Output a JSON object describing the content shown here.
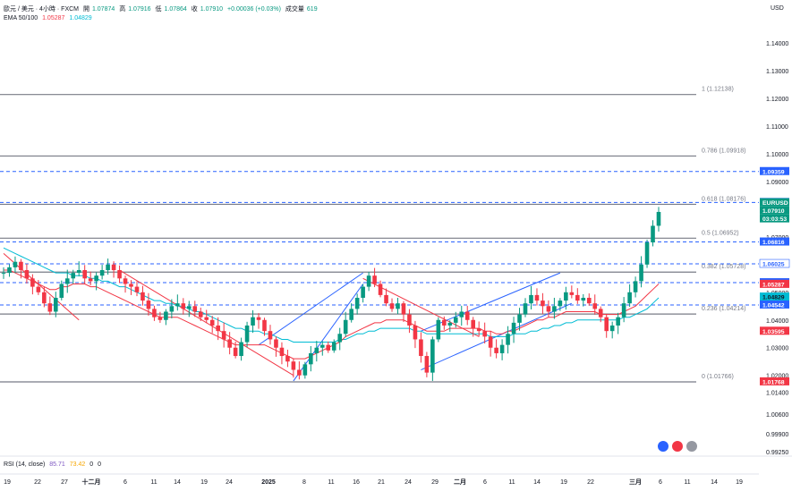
{
  "header": {
    "symbol": "歐元 / 美元 · 4小時 · FXCM",
    "open_label": "開",
    "open": "1.07874",
    "high_label": "高",
    "high": "1.07916",
    "low_label": "低",
    "low": "1.07864",
    "close_label": "收",
    "close": "1.07910",
    "change": "+0.00036 (+0.03%)",
    "volume_label": "成交量",
    "volume": "619"
  },
  "ema_legend": {
    "label": "EMA 50/100",
    "ema50": "1.05287",
    "ema100": "1.04829",
    "ema50_color": "#f23645",
    "ema100_color": "#00bcd4"
  },
  "rsi_legend": {
    "label": "RSI (14, close)",
    "v1": "85.71",
    "v2": "73.42",
    "v3": "0",
    "v4": "0",
    "v1_color": "#7e57c2",
    "v2_color": "#f7a600"
  },
  "currency": "USD",
  "chart_data": {
    "type": "candlestick",
    "y_axis": {
      "min": 0.9915,
      "max": 1.1555,
      "ticks": [
        "1.14000",
        "1.13000",
        "1.12000",
        "1.11000",
        "1.10000",
        "1.09000",
        "1.08000",
        "1.07000",
        "1.06000",
        "1.05000",
        "1.04000",
        "1.03000",
        "1.02000",
        "1.01400",
        "1.00600",
        "0.99900",
        "0.99250"
      ]
    },
    "x_ticks": [
      "19",
      "22",
      "27",
      "十二月",
      "6",
      "11",
      "14",
      "19",
      "24",
      "2025",
      "8",
      "11",
      "16",
      "21",
      "24",
      "29",
      "二月",
      "6",
      "11",
      "14",
      "19",
      "22",
      "三月",
      "6",
      "11",
      "14",
      "19"
    ],
    "fib_levels": [
      {
        "label": "1 (1.12138)",
        "price": 1.12138
      },
      {
        "label": "0.786 (1.09918)",
        "price": 1.09918
      },
      {
        "label": "0.618 (1.08176)",
        "price": 1.08176
      },
      {
        "label": "0.5 (1.06952)",
        "price": 1.06952
      },
      {
        "label": "0.382 (1.05728)",
        "price": 1.05728
      },
      {
        "label": "0.236 (1.04214)",
        "price": 1.04214
      },
      {
        "label": "0 (1.01766)",
        "price": 1.01766
      }
    ],
    "price_labels": [
      {
        "text": "1.09359",
        "price": 1.09359,
        "bg": "#2962ff",
        "fg": "#ffffff"
      },
      {
        "text": "1.08243",
        "price": 1.08243,
        "bg": "#2962ff",
        "fg": "#ffffff"
      },
      {
        "text": "EURUSD",
        "price": 1.0791,
        "bg": "#089981",
        "fg": "#ffffff"
      },
      {
        "text": "1.07910",
        "price": 1.0791,
        "bg": "#089981",
        "fg": "#ffffff"
      },
      {
        "text": "03:03:53",
        "price": 1.0791,
        "bg": "#089981",
        "fg": "#ffffff"
      },
      {
        "text": "1.06816",
        "price": 1.06816,
        "bg": "#2962ff",
        "fg": "#ffffff"
      },
      {
        "text": "1.06025",
        "price": 1.06025,
        "bg": "#ffffff",
        "fg": "#2962ff"
      },
      {
        "text": "1.05347",
        "price": 1.05347,
        "bg": "#2962ff",
        "fg": "#ffffff"
      },
      {
        "text": "1.05287",
        "price": 1.05287,
        "bg": "#f23645",
        "fg": "#ffffff"
      },
      {
        "text": "1.04829",
        "price": 1.04829,
        "bg": "#00bcd4",
        "fg": "#131722"
      },
      {
        "text": "1.04542",
        "price": 1.04542,
        "bg": "#2962ff",
        "fg": "#ffffff"
      },
      {
        "text": "1.03595",
        "price": 1.03595,
        "bg": "#f23645",
        "fg": "#ffffff"
      },
      {
        "text": "1.01768",
        "price": 1.01768,
        "bg": "#f23645",
        "fg": "#ffffff"
      }
    ],
    "dashed_levels": [
      1.09359,
      1.08243,
      1.06816,
      1.06025,
      1.05347,
      1.04542
    ],
    "close_series": [
      1.057,
      1.059,
      1.061,
      1.058,
      1.055,
      1.052,
      1.05,
      1.046,
      1.043,
      1.048,
      1.053,
      1.055,
      1.057,
      1.058,
      1.055,
      1.054,
      1.056,
      1.058,
      1.06,
      1.058,
      1.055,
      1.053,
      1.052,
      1.05,
      1.047,
      1.044,
      1.041,
      1.04,
      1.043,
      1.045,
      1.046,
      1.044,
      1.045,
      1.043,
      1.041,
      1.04,
      1.038,
      1.036,
      1.033,
      1.03,
      1.027,
      1.032,
      1.038,
      1.041,
      1.04,
      1.036,
      1.033,
      1.03,
      1.027,
      1.025,
      1.022,
      1.02,
      1.024,
      1.028,
      1.03,
      1.031,
      1.029,
      1.032,
      1.035,
      1.04,
      1.044,
      1.048,
      1.052,
      1.056,
      1.053,
      1.049,
      1.046,
      1.044,
      1.046,
      1.042,
      1.038,
      1.033,
      1.027,
      1.021,
      1.033,
      1.04,
      1.038,
      1.039,
      1.041,
      1.043,
      1.04,
      1.037,
      1.036,
      1.034,
      1.03,
      1.028,
      1.031,
      1.035,
      1.039,
      1.042,
      1.046,
      1.049,
      1.047,
      1.045,
      1.043,
      1.045,
      1.047,
      1.05,
      1.049,
      1.047,
      1.048,
      1.046,
      1.044,
      1.041,
      1.036,
      1.038,
      1.041,
      1.046,
      1.05,
      1.054,
      1.06,
      1.068,
      1.074,
      1.079
    ],
    "ema50": [
      1.058,
      1.058,
      1.057,
      1.056,
      1.055,
      1.054,
      1.053,
      1.052,
      1.051,
      1.051,
      1.052,
      1.052,
      1.053,
      1.053,
      1.053,
      1.052,
      1.052,
      1.051,
      1.05,
      1.049,
      1.048,
      1.047,
      1.046,
      1.045,
      1.044,
      1.043,
      1.042,
      1.041,
      1.041,
      1.041,
      1.041,
      1.04,
      1.039,
      1.038,
      1.037,
      1.036,
      1.035,
      1.034,
      1.033,
      1.032,
      1.031,
      1.031,
      1.031,
      1.031,
      1.031,
      1.031,
      1.03,
      1.029,
      1.028,
      1.027,
      1.026,
      1.026,
      1.026,
      1.027,
      1.028,
      1.029,
      1.03,
      1.031,
      1.032,
      1.034,
      1.035,
      1.036,
      1.037,
      1.038,
      1.039,
      1.039,
      1.04,
      1.04,
      1.04,
      1.04,
      1.039,
      1.038,
      1.037,
      1.036,
      1.036,
      1.036,
      1.036,
      1.037,
      1.037,
      1.037,
      1.037,
      1.037,
      1.037,
      1.036,
      1.036,
      1.035,
      1.035,
      1.036,
      1.036,
      1.037,
      1.038,
      1.039,
      1.04,
      1.04,
      1.041,
      1.041,
      1.042,
      1.043,
      1.043,
      1.043,
      1.043,
      1.043,
      1.043,
      1.042,
      1.042,
      1.042,
      1.042,
      1.043,
      1.044,
      1.045,
      1.047,
      1.049,
      1.051,
      1.053
    ],
    "ema100": [
      1.066,
      1.065,
      1.064,
      1.063,
      1.062,
      1.061,
      1.06,
      1.059,
      1.058,
      1.057,
      1.057,
      1.057,
      1.056,
      1.056,
      1.056,
      1.055,
      1.055,
      1.054,
      1.054,
      1.053,
      1.052,
      1.052,
      1.051,
      1.05,
      1.049,
      1.048,
      1.047,
      1.047,
      1.046,
      1.046,
      1.045,
      1.045,
      1.044,
      1.043,
      1.043,
      1.042,
      1.041,
      1.04,
      1.039,
      1.038,
      1.037,
      1.037,
      1.036,
      1.036,
      1.036,
      1.035,
      1.035,
      1.034,
      1.033,
      1.033,
      1.032,
      1.032,
      1.032,
      1.032,
      1.032,
      1.032,
      1.032,
      1.032,
      1.033,
      1.033,
      1.034,
      1.035,
      1.035,
      1.036,
      1.036,
      1.037,
      1.037,
      1.037,
      1.037,
      1.037,
      1.037,
      1.036,
      1.036,
      1.035,
      1.035,
      1.035,
      1.035,
      1.035,
      1.035,
      1.035,
      1.035,
      1.035,
      1.035,
      1.035,
      1.034,
      1.034,
      1.034,
      1.034,
      1.035,
      1.035,
      1.035,
      1.036,
      1.036,
      1.037,
      1.037,
      1.038,
      1.038,
      1.039,
      1.039,
      1.04,
      1.04,
      1.04,
      1.04,
      1.04,
      1.04,
      1.04,
      1.04,
      1.041,
      1.041,
      1.042,
      1.043,
      1.044,
      1.046,
      1.048
    ],
    "trendlines": [
      {
        "from": {
          "i": 0,
          "p": 1.064
        },
        "to": {
          "i": 13,
          "p": 1.04
        },
        "color": "#f23645"
      },
      {
        "from": {
          "i": 20,
          "p": 1.058
        },
        "to": {
          "i": 50,
          "p": 1.02
        },
        "color": "#f23645"
      },
      {
        "from": {
          "i": 50,
          "p": 1.018
        },
        "to": {
          "i": 62,
          "p": 1.053
        },
        "color": "#2962ff"
      },
      {
        "from": {
          "i": 44,
          "p": 1.031
        },
        "to": {
          "i": 62,
          "p": 1.057
        },
        "color": "#2962ff"
      },
      {
        "from": {
          "i": 62,
          "p": 1.055
        },
        "to": {
          "i": 82,
          "p": 1.034
        },
        "color": "#f23645"
      },
      {
        "from": {
          "i": 72,
          "p": 1.022
        },
        "to": {
          "i": 98,
          "p": 1.046
        },
        "color": "#2962ff"
      },
      {
        "from": {
          "i": 72,
          "p": 1.036
        },
        "to": {
          "i": 96,
          "p": 1.057
        },
        "color": "#2962ff"
      }
    ]
  }
}
